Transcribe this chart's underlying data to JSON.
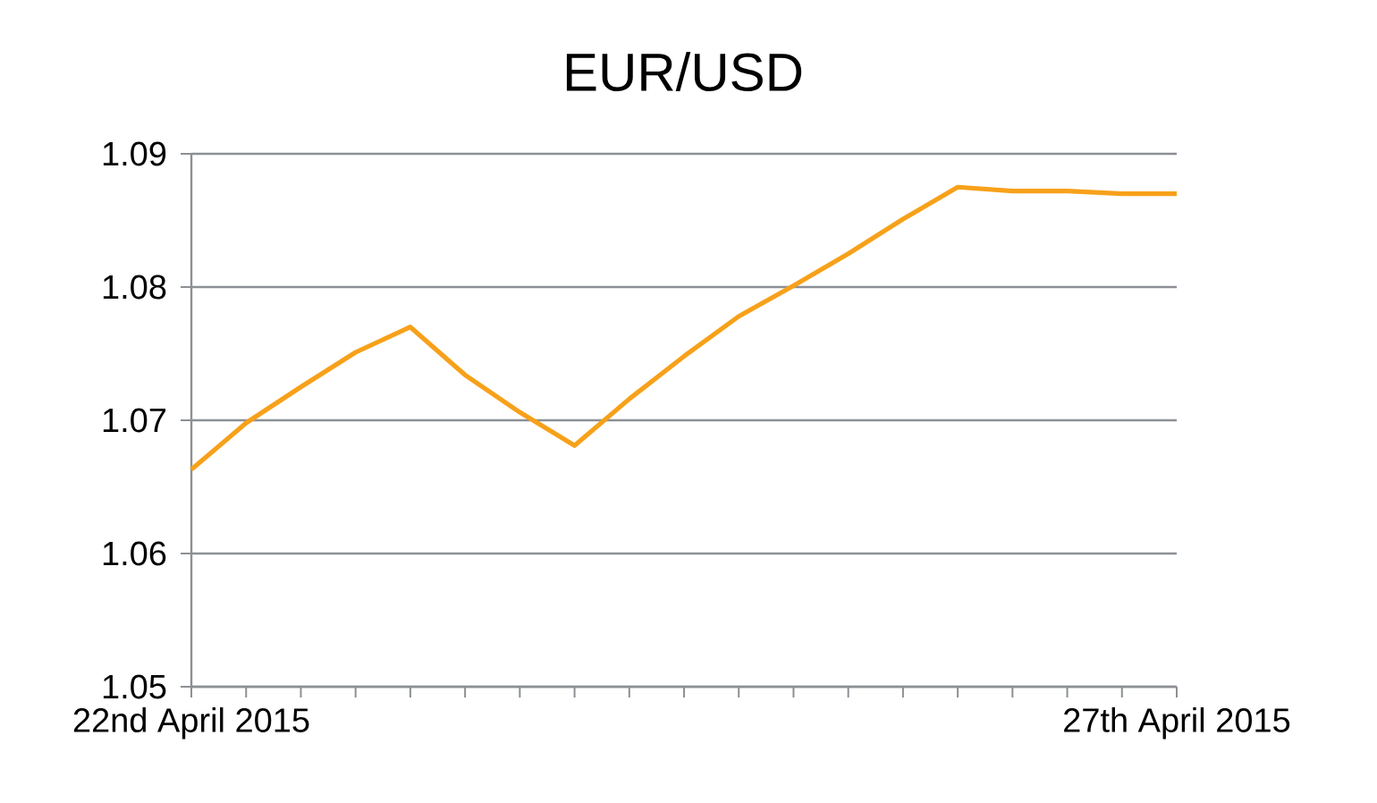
{
  "chart_data": {
    "type": "line",
    "title": "EUR/USD",
    "categories": [
      "22nd April 2015",
      null,
      null,
      null,
      null,
      null,
      null,
      null,
      null,
      null,
      null,
      null,
      null,
      null,
      null,
      null,
      null,
      null,
      "27th April 2015"
    ],
    "series": [
      {
        "color": "#f7a11a",
        "values": [
          1.0663,
          1.0698,
          1.0725,
          1.0751,
          1.077,
          1.0734,
          1.0706,
          1.0681,
          1.0716,
          1.0748,
          1.0778,
          1.0801,
          1.0825,
          1.0851,
          1.0875,
          1.0872,
          1.0872,
          1.087,
          1.087
        ]
      }
    ],
    "ylim": [
      1.05,
      1.09
    ],
    "yticks": [
      1.05,
      1.06,
      1.07,
      1.08,
      1.09
    ],
    "grid": "y",
    "marker": "none",
    "line_style": "solid"
  }
}
